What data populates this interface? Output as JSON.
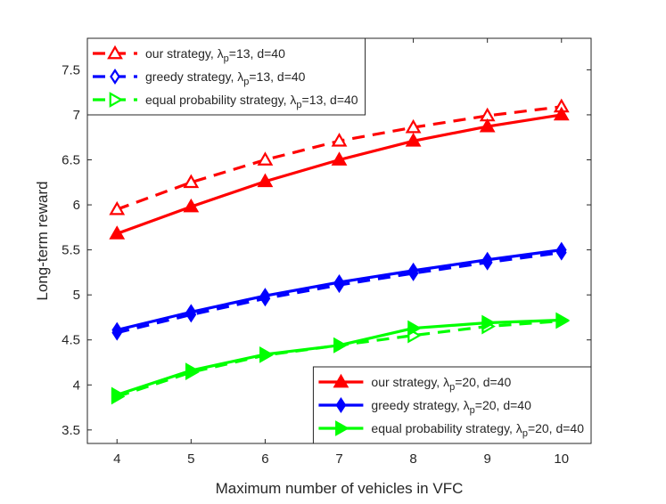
{
  "chart_data": {
    "type": "line",
    "title": "",
    "xlabel": "Maximum number of vehicles in VFC",
    "ylabel": "Long-term reward",
    "xlim": [
      3.6,
      10.4
    ],
    "ylim": [
      3.35,
      7.85
    ],
    "x": [
      4,
      5,
      6,
      7,
      8,
      9,
      10
    ],
    "xticks": [
      "4",
      "5",
      "6",
      "7",
      "8",
      "9",
      "10"
    ],
    "yticks": [
      "3.5",
      "4",
      "4.5",
      "5",
      "5.5",
      "6",
      "6.5",
      "7",
      "7.5"
    ],
    "grid": false,
    "colors": {
      "red": "#ff0000",
      "blue": "#0000ff",
      "green": "#00ff00",
      "axis": "#262626"
    },
    "series": [
      {
        "name": "our strategy, λp=13, d=40",
        "label_prefix": "our strategy, λ",
        "label_sub": "p",
        "label_suffix": "=13, d=40",
        "color": "#ff0000",
        "dash": true,
        "marker": "triangle-up",
        "filled": false,
        "values": [
          5.95,
          6.25,
          6.5,
          6.71,
          6.86,
          6.99,
          7.09
        ]
      },
      {
        "name": "greedy strategy, λp=13, d=40",
        "label_prefix": "greedy strategy, λ",
        "label_sub": "p",
        "label_suffix": "=13, d=40",
        "color": "#0000ff",
        "dash": true,
        "marker": "diamond",
        "filled": false,
        "values": [
          4.58,
          4.78,
          4.96,
          5.11,
          5.24,
          5.36,
          5.47
        ]
      },
      {
        "name": "equal probability strategy, λp=13, d=40",
        "label_prefix": "equal probability strategy, λ",
        "label_sub": "p",
        "label_suffix": "=13, d=40",
        "color": "#00ff00",
        "dash": true,
        "marker": "triangle-right",
        "filled": false,
        "values": [
          3.87,
          4.14,
          4.33,
          4.44,
          4.55,
          4.65,
          4.71
        ]
      },
      {
        "name": "our strategy, λp=20, d=40",
        "label_prefix": "our strategy, λ",
        "label_sub": "p",
        "label_suffix": "=20, d=40",
        "color": "#ff0000",
        "dash": false,
        "marker": "triangle-up",
        "filled": true,
        "values": [
          5.68,
          5.98,
          6.26,
          6.5,
          6.71,
          6.87,
          7.0
        ]
      },
      {
        "name": "greedy strategy, λp=20, d=40",
        "label_prefix": "greedy strategy, λ",
        "label_sub": "p",
        "label_suffix": "=20, d=40",
        "color": "#0000ff",
        "dash": false,
        "marker": "diamond",
        "filled": true,
        "values": [
          4.61,
          4.81,
          4.99,
          5.14,
          5.27,
          5.39,
          5.5
        ]
      },
      {
        "name": "equal probability strategy, λp=20, d=40",
        "label_prefix": "equal probability strategy, λ",
        "label_sub": "p",
        "label_suffix": "=20, d=40",
        "color": "#00ff00",
        "dash": false,
        "marker": "triangle-right",
        "filled": true,
        "values": [
          3.89,
          4.16,
          4.34,
          4.44,
          4.63,
          4.69,
          4.72
        ]
      }
    ],
    "legends": [
      {
        "placement": "top-left",
        "series_indices": [
          0,
          1,
          2
        ]
      },
      {
        "placement": "bottom-right",
        "series_indices": [
          3,
          4,
          5
        ]
      }
    ]
  }
}
